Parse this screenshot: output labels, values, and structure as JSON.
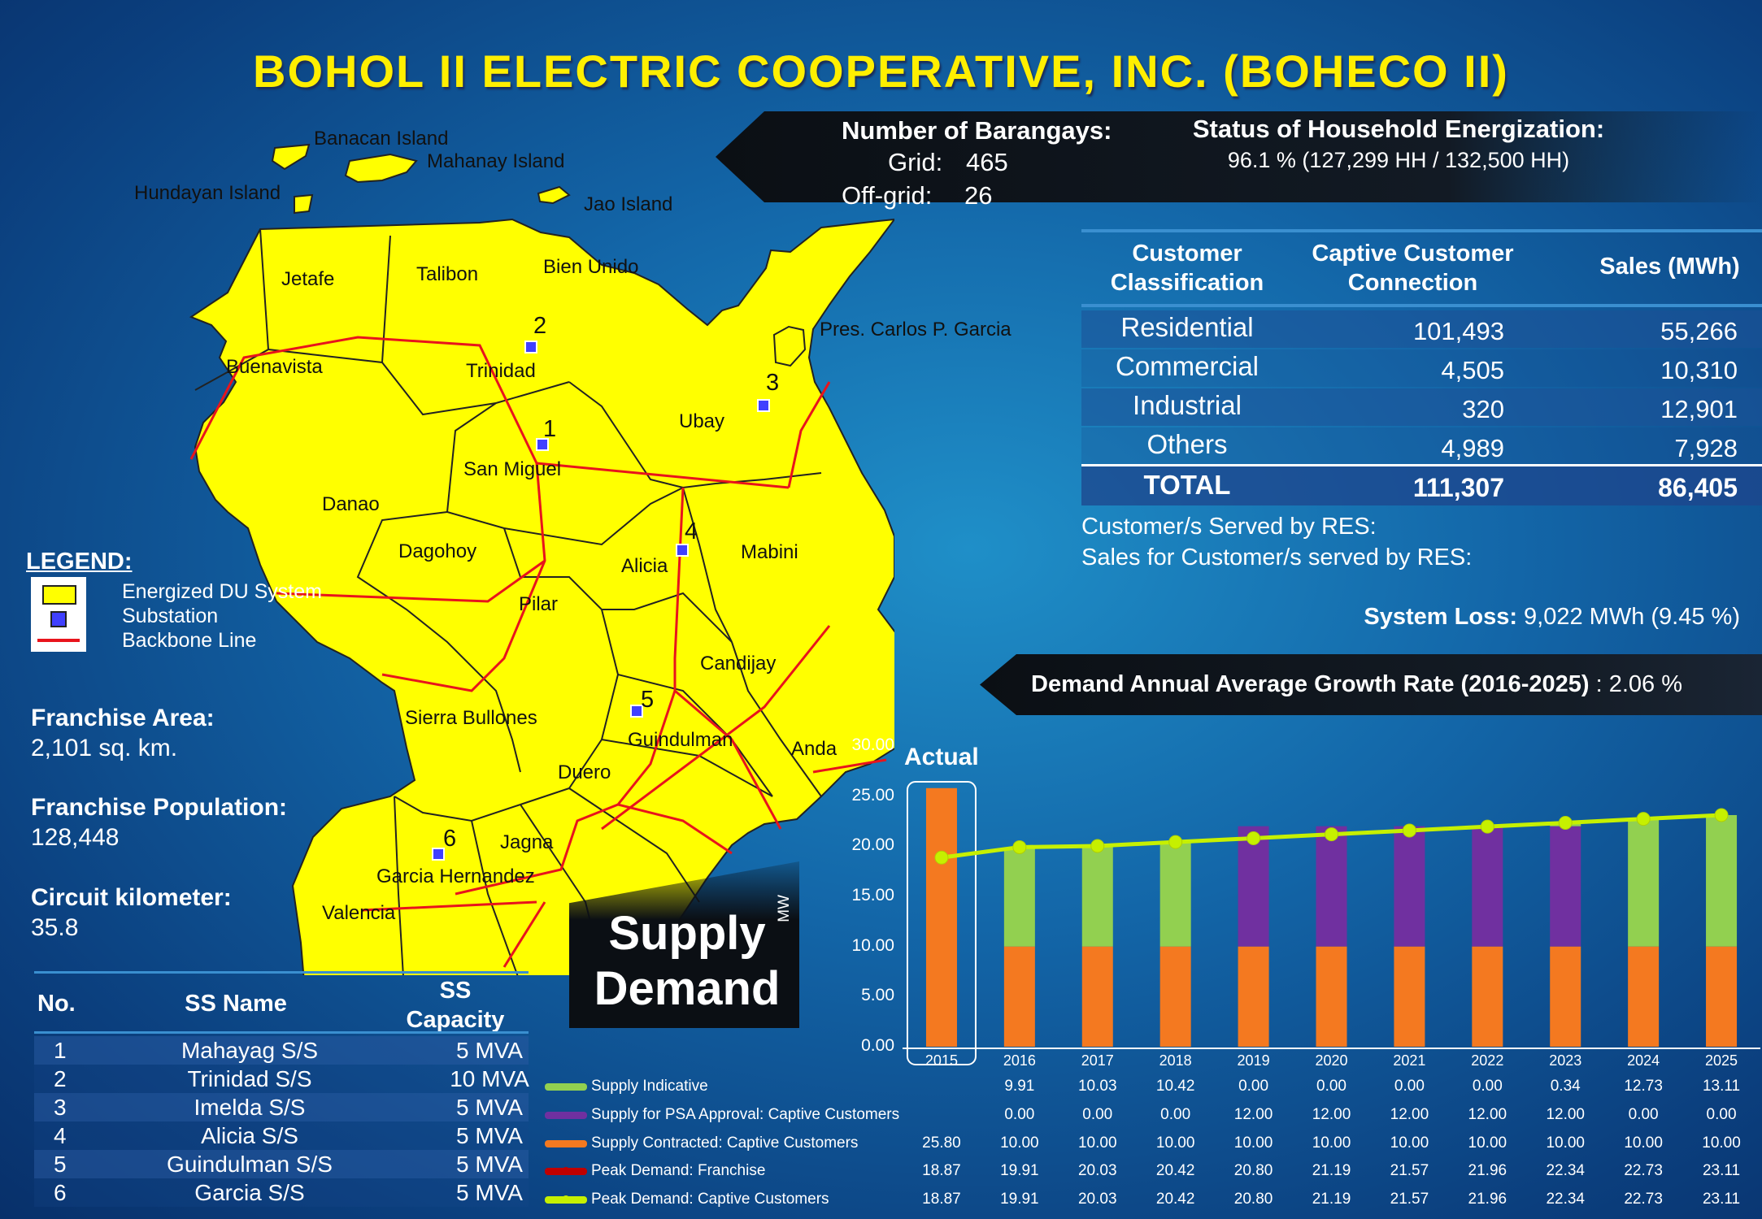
{
  "title": "BOHOL II ELECTRIC COOPERATIVE, INC. (BOHECO II)",
  "barangays": {
    "heading": "Number of Barangays:",
    "grid_label": "Grid:",
    "grid_value": "465",
    "offgrid_label": "Off-grid:",
    "offgrid_value": "26"
  },
  "energization": {
    "heading": "Status of Household Energization:",
    "value": "96.1 % (127,299 HH / 132,500 HH)"
  },
  "customer_table": {
    "headers": [
      "Customer Classification",
      "Captive Customer Connection",
      "Sales (MWh)"
    ],
    "rows": [
      {
        "class": "Residential",
        "connections": "101,493",
        "sales": "55,266"
      },
      {
        "class": "Commercial",
        "connections": "4,505",
        "sales": "10,310"
      },
      {
        "class": "Industrial",
        "connections": "320",
        "sales": "12,901"
      },
      {
        "class": "Others",
        "connections": "4,989",
        "sales": "7,928"
      }
    ],
    "total": {
      "class": "TOTAL",
      "connections": "111,307",
      "sales": "86,405"
    }
  },
  "res_served": "Customer/s Served by RES:",
  "res_sales": "Sales for Customer/s served by RES:",
  "system_loss": {
    "label": "System Loss:",
    "value": "9,022 MWh (9.45 %)"
  },
  "growth": {
    "label": "Demand Annual Average Growth Rate (2016-2025)",
    "value": ": 2.06 %"
  },
  "legend": {
    "title": "LEGEND:",
    "items": [
      "Energized DU System",
      "Substation",
      "Backbone Line"
    ]
  },
  "franchise_area": {
    "label": "Franchise Area:",
    "value": "2,101 sq. km."
  },
  "franchise_population": {
    "label": "Franchise Population:",
    "value": "128,448"
  },
  "circuit_km": {
    "label": "Circuit kilometer:",
    "value": "35.8"
  },
  "ss_table": {
    "headers": [
      "No.",
      "SS Name",
      "SS Capacity"
    ],
    "rows": [
      {
        "no": "1",
        "name": "Mahayag S/S",
        "cap": "5 MVA"
      },
      {
        "no": "2",
        "name": "Trinidad S/S",
        "cap": "10 MVA"
      },
      {
        "no": "3",
        "name": "Imelda S/S",
        "cap": "5 MVA"
      },
      {
        "no": "4",
        "name": "Alicia S/S",
        "cap": "5 MVA"
      },
      {
        "no": "5",
        "name": "Guindulman S/S",
        "cap": "5 MVA"
      },
      {
        "no": "6",
        "name": "Garcia S/S",
        "cap": "5 MVA"
      }
    ]
  },
  "map_labels": {
    "banacan": "Banacan Island",
    "mahanay": "Mahanay Island",
    "hundayan": "Hundayan Island",
    "jao": "Jao Island",
    "bien_unido": "Bien Unido",
    "pres_garcia": "Pres. Carlos P. Garcia",
    "jetafe": "Jetafe",
    "talibon": "Talibon",
    "buenavista": "Buenavista",
    "trinidad": "Trinidad",
    "ubay": "Ubay",
    "san_miguel": "San Miguel",
    "danao": "Danao",
    "dagohoy": "Dagohoy",
    "alicia": "Alicia",
    "mabini": "Mabini",
    "pilar": "Pilar",
    "candijay": "Candijay",
    "sierra_bullones": "Sierra Bullones",
    "guindulman": "Guindulman",
    "anda": "Anda",
    "duero": "Duero",
    "jagna": "Jagna",
    "garcia_hernandez": "Garcia Hernandez",
    "valencia": "Valencia",
    "ss1": "1",
    "ss2": "2",
    "ss3": "3",
    "ss4": "4",
    "ss5": "5",
    "ss6": "6"
  },
  "supply_demand_label_1": "Supply",
  "supply_demand_label_2": "Demand",
  "actual_label": "Actual",
  "colors": {
    "title": "#ffef00",
    "map_fill": "#ffff00",
    "backbone": "#e8141c",
    "supply_indicative": "#92d050",
    "supply_psa": "#7030a0",
    "supply_contracted": "#f47920",
    "peak_franchise": "#c00000",
    "peak_captive": "#c6f000"
  },
  "chart_data": {
    "type": "bar",
    "stacked": true,
    "categories": [
      "2015",
      "2016",
      "2017",
      "2018",
      "2019",
      "2020",
      "2021",
      "2022",
      "2023",
      "2024",
      "2025"
    ],
    "ylabel": "MW",
    "ylim": [
      0,
      30
    ],
    "yticks": [
      "0.00",
      "5.00",
      "10.00",
      "15.00",
      "20.00",
      "25.00",
      "30.00"
    ],
    "series": [
      {
        "name": "Supply Indicative",
        "kind": "bar",
        "values": [
          null,
          9.91,
          10.03,
          10.42,
          0.0,
          0.0,
          0.0,
          0.0,
          0.34,
          12.73,
          13.11
        ],
        "labels": [
          "",
          "9.91",
          "10.03",
          "10.42",
          "0.00",
          "0.00",
          "0.00",
          "0.00",
          "0.34",
          "12.73",
          "13.11"
        ]
      },
      {
        "name": "Supply for PSA Approval:  Captive Customers",
        "kind": "bar",
        "values": [
          null,
          0.0,
          0.0,
          0.0,
          12.0,
          12.0,
          12.0,
          12.0,
          12.0,
          0.0,
          0.0
        ],
        "labels": [
          "",
          "0.00",
          "0.00",
          "0.00",
          "12.00",
          "12.00",
          "12.00",
          "12.00",
          "12.00",
          "0.00",
          "0.00"
        ]
      },
      {
        "name": "Supply Contracted:  Captive Customers",
        "kind": "bar",
        "values": [
          25.8,
          10.0,
          10.0,
          10.0,
          10.0,
          10.0,
          10.0,
          10.0,
          10.0,
          10.0,
          10.0
        ],
        "labels": [
          "25.80",
          "10.00",
          "10.00",
          "10.00",
          "10.00",
          "10.00",
          "10.00",
          "10.00",
          "10.00",
          "10.00",
          "10.00"
        ]
      },
      {
        "name": "Peak Demand:  Franchise",
        "kind": "line",
        "values": [
          18.87,
          19.91,
          20.03,
          20.42,
          20.8,
          21.19,
          21.57,
          21.96,
          22.34,
          22.73,
          23.11
        ],
        "labels": [
          "18.87",
          "19.91",
          "20.03",
          "20.42",
          "20.80",
          "21.19",
          "21.57",
          "21.96",
          "22.34",
          "22.73",
          "23.11"
        ]
      },
      {
        "name": "Peak Demand:  Captive Customers",
        "kind": "line",
        "values": [
          18.87,
          19.91,
          20.03,
          20.42,
          20.8,
          21.19,
          21.57,
          21.96,
          22.34,
          22.73,
          23.11
        ],
        "labels": [
          "18.87",
          "19.91",
          "20.03",
          "20.42",
          "20.80",
          "21.19",
          "21.57",
          "21.96",
          "22.34",
          "22.73",
          "23.11"
        ]
      }
    ]
  }
}
